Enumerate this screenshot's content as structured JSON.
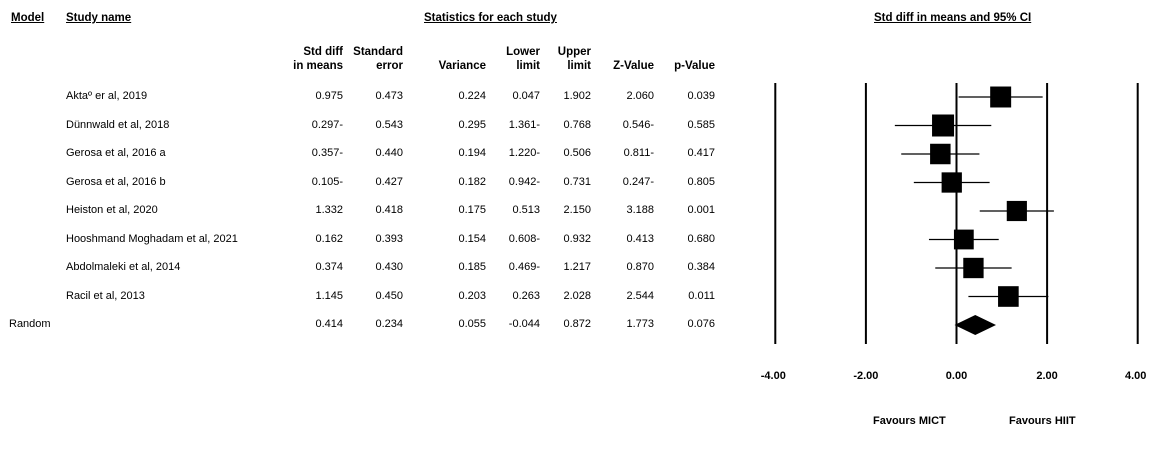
{
  "headers": {
    "model": "Model",
    "study_name": "Study name",
    "statistics": "Statistics for each study",
    "plot": "Std diff in means and 95% CI"
  },
  "columns": [
    [
      "Std diff",
      "in means"
    ],
    [
      "Standard",
      "error"
    ],
    [
      "",
      "Variance"
    ],
    [
      "Lower",
      "limit"
    ],
    [
      "Upper",
      "limit"
    ],
    [
      "",
      "Z-Value"
    ],
    [
      "",
      "p-Value"
    ]
  ],
  "rows": [
    {
      "model": "",
      "study": "Aktaº er al, 2019",
      "values": [
        "0.975",
        "0.473",
        "0.224",
        "0.047",
        "1.902",
        "2.060",
        "0.039"
      ]
    },
    {
      "model": "",
      "study": "Dünnwald et al, 2018",
      "values": [
        "0.297-",
        "0.543",
        "0.295",
        "1.361-",
        "0.768",
        "0.546-",
        "0.585"
      ]
    },
    {
      "model": "",
      "study": "Gerosa et al, 2016 a",
      "values": [
        "0.357-",
        "0.440",
        "0.194",
        "1.220-",
        "0.506",
        "0.811-",
        "0.417"
      ]
    },
    {
      "model": "",
      "study": "Gerosa et al, 2016 b",
      "values": [
        "0.105-",
        "0.427",
        "0.182",
        "0.942-",
        "0.731",
        "0.247-",
        "0.805"
      ]
    },
    {
      "model": "",
      "study": "Heiston et al, 2020",
      "values": [
        "1.332",
        "0.418",
        "0.175",
        "0.513",
        "2.150",
        "3.188",
        "0.001"
      ]
    },
    {
      "model": "",
      "study": "Hooshmand Moghadam et al, 2021",
      "values": [
        "0.162",
        "0.393",
        "0.154",
        "0.608-",
        "0.932",
        "0.413",
        "0.680"
      ]
    },
    {
      "model": "",
      "study": "Abdolmaleki et al, 2014",
      "values": [
        "0.374",
        "0.430",
        "0.185",
        "0.469-",
        "1.217",
        "0.870",
        "0.384"
      ]
    },
    {
      "model": "",
      "study": "Racil et al, 2013",
      "values": [
        "1.145",
        "0.450",
        "0.203",
        "0.263",
        "2.028",
        "2.544",
        "0.011"
      ]
    },
    {
      "model": "Random",
      "study": "",
      "values": [
        "0.414",
        "0.234",
        "0.055",
        "-0.044",
        "0.872",
        "1.773",
        "0.076"
      ]
    }
  ],
  "axis": {
    "ticks": [
      "-4.00",
      "-2.00",
      "0.00",
      "2.00",
      "4.00"
    ],
    "favours_left": "Favours MICT",
    "favours_right": "Favours HIIT"
  },
  "chart_data": {
    "type": "scatter",
    "title": "Std diff in means and 95% CI",
    "xlim": [
      -4,
      4
    ],
    "xticks": [
      -4,
      -2,
      0,
      2,
      4
    ],
    "vertical_lines": [
      -4,
      -2,
      0,
      2,
      4
    ],
    "studies": [
      {
        "name": "Aktaº er al, 2019",
        "est": 0.975,
        "lower": 0.047,
        "upper": 1.902,
        "weight": 0.473
      },
      {
        "name": "Dünnwald et al, 2018",
        "est": -0.297,
        "lower": -1.361,
        "upper": 0.768,
        "weight": 0.543
      },
      {
        "name": "Gerosa et al, 2016 a",
        "est": -0.357,
        "lower": -1.22,
        "upper": 0.506,
        "weight": 0.44
      },
      {
        "name": "Gerosa et al, 2016 b",
        "est": -0.105,
        "lower": -0.942,
        "upper": 0.731,
        "weight": 0.427
      },
      {
        "name": "Heiston et al, 2020",
        "est": 1.332,
        "lower": 0.513,
        "upper": 2.15,
        "weight": 0.418
      },
      {
        "name": "Hooshmand Moghadam et al, 2021",
        "est": 0.162,
        "lower": -0.608,
        "upper": 0.932,
        "weight": 0.393
      },
      {
        "name": "Abdolmaleki et al, 2014",
        "est": 0.374,
        "lower": -0.469,
        "upper": 1.217,
        "weight": 0.43
      },
      {
        "name": "Racil et al, 2013",
        "est": 1.145,
        "lower": 0.263,
        "upper": 2.028,
        "weight": 0.45
      }
    ],
    "summary": {
      "name": "Random",
      "est": 0.414,
      "lower": -0.044,
      "upper": 0.872
    }
  }
}
